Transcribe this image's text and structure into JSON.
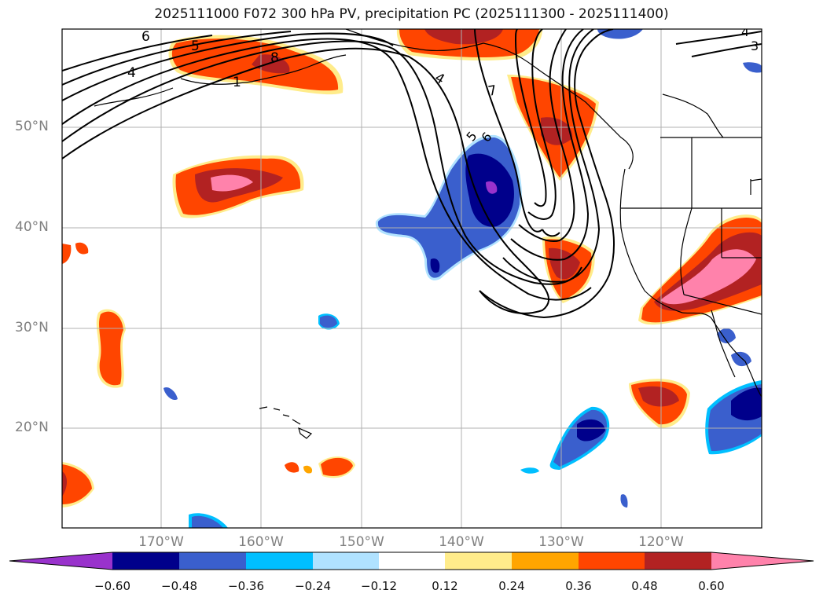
{
  "title": "2025111000 F072 300 hPa PV, precipitation PC (2025111300 - 2025111400)",
  "latitude_labels": [
    "50°N",
    "40°N",
    "30°N",
    "20°N"
  ],
  "longitude_labels": [
    "170°W",
    "160°W",
    "150°W",
    "140°W",
    "130°W",
    "120°W"
  ],
  "contour_labels": [
    "6",
    "5",
    "4",
    "8",
    "1",
    "4",
    "7",
    "5",
    "6",
    "4",
    "3"
  ],
  "colorbar": {
    "tick_labels": [
      "−0.60",
      "−0.48",
      "−0.36",
      "−0.24",
      "−0.12",
      "0.12",
      "0.24",
      "0.36",
      "0.48",
      "0.60"
    ],
    "colors": [
      "#9932cc",
      "#00008b",
      "#3a5fcd",
      "#00bfff",
      "#b0e2ff",
      "#ffffff",
      "#ffec8b",
      "#ffa500",
      "#ff4500",
      "#b22222",
      "#ff82ab"
    ]
  },
  "colors": {
    "neg_extreme": "#9932cc",
    "neg_strong": "#00008b",
    "neg_mid": "#3a5fcd",
    "neg_light": "#00bfff",
    "neg_pale": "#b0e2ff",
    "pos_pale": "#ffec8b",
    "pos_light": "#ffa500",
    "pos_mid": "#ff4500",
    "pos_strong": "#b22222",
    "pos_extreme": "#ff82ab",
    "gridline": "#b0b0b0",
    "label_gray": "#808080"
  }
}
